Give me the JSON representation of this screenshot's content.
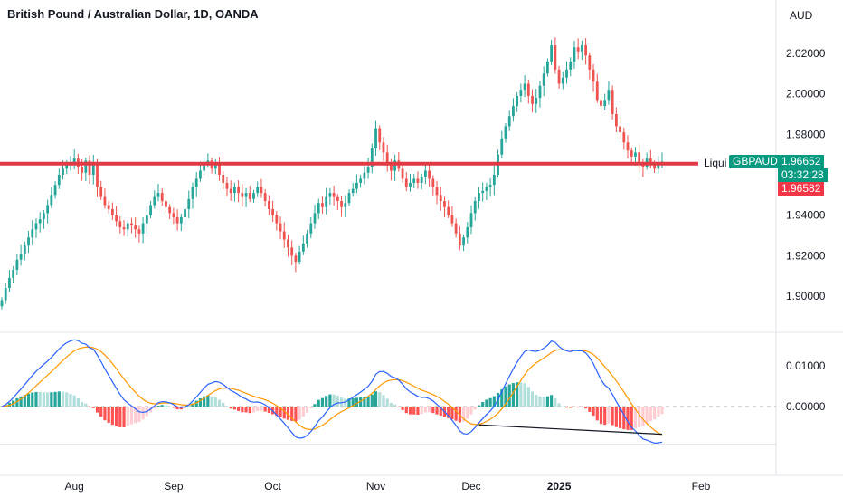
{
  "header": {
    "title": "British Pound / Australian Dollar, 1D, OANDA",
    "currency": "AUD"
  },
  "annotations": {
    "line_label": "Liqui",
    "symbol_tag": "GBPAUD",
    "last_price": "1.96652",
    "countdown": "03:32:28",
    "other_price": "1.96582"
  },
  "colors": {
    "up": "#26a69a",
    "down": "#ef5350",
    "level_line": "#e03a45",
    "macd_line": "#2962ff",
    "signal_line": "#ff9800",
    "hist_up_strong": "#26a69a",
    "hist_up_weak": "#b2dfdb",
    "hist_down_strong": "#ff5252",
    "hist_down_weak": "#ffcdd2"
  },
  "chart_data": [
    {
      "type": "candlestick",
      "price_axis": {
        "range": [
          1.895,
          2.032
        ],
        "ticks": [
          "2.02000",
          "2.00000",
          "1.98000",
          "1.96000",
          "1.94000",
          "1.92000",
          "1.90000"
        ]
      },
      "time_axis": {
        "labels": [
          "Aug",
          "Sep",
          "Oct",
          "Nov",
          "Dec",
          "2025",
          "Feb"
        ]
      },
      "horizontal_level": 1.9655,
      "closes": [
        1.898,
        1.904,
        1.909,
        1.913,
        1.918,
        1.921,
        1.925,
        1.929,
        1.933,
        1.936,
        1.938,
        1.941,
        1.945,
        1.95,
        1.955,
        1.96,
        1.963,
        1.965,
        1.966,
        1.968,
        1.964,
        1.961,
        1.967,
        1.96,
        1.966,
        1.954,
        1.949,
        1.945,
        1.943,
        1.94,
        1.937,
        1.934,
        1.933,
        1.936,
        1.935,
        1.933,
        1.931,
        1.936,
        1.94,
        1.945,
        1.949,
        1.951,
        1.947,
        1.944,
        1.941,
        1.939,
        1.936,
        1.939,
        1.943,
        1.948,
        1.954,
        1.958,
        1.962,
        1.966,
        1.967,
        1.963,
        1.965,
        1.96,
        1.956,
        1.953,
        1.951,
        1.954,
        1.951,
        1.949,
        1.951,
        1.948,
        1.951,
        1.954,
        1.951,
        1.947,
        1.943,
        1.94,
        1.936,
        1.932,
        1.928,
        1.924,
        1.92,
        1.917,
        1.922,
        1.926,
        1.931,
        1.936,
        1.941,
        1.946,
        1.944,
        1.949,
        1.951,
        1.949,
        1.947,
        1.944,
        1.946,
        1.951,
        1.953,
        1.956,
        1.958,
        1.961,
        1.964,
        1.973,
        1.983,
        1.976,
        1.971,
        1.966,
        1.962,
        1.967,
        1.963,
        1.958,
        1.954,
        1.956,
        1.958,
        1.956,
        1.959,
        1.962,
        1.958,
        1.954,
        1.95,
        1.947,
        1.944,
        1.94,
        1.936,
        1.931,
        1.925,
        1.929,
        1.934,
        1.941,
        1.947,
        1.951,
        1.952,
        1.954,
        1.955,
        1.96,
        1.97,
        1.978,
        1.984,
        1.989,
        1.994,
        1.999,
        2.002,
        2.005,
        1.999,
        1.995,
        1.998,
        2.004,
        2.01,
        2.016,
        2.024,
        2.012,
        2.005,
        2.008,
        2.012,
        2.016,
        2.023,
        2.021,
        2.024,
        2.019,
        2.012,
        2.006,
        1.997,
        1.994,
        1.997,
        2.002,
        1.99,
        1.984,
        1.981,
        1.976,
        1.972,
        1.969,
        1.971,
        1.966,
        1.964,
        1.968,
        1.965,
        1.963,
        1.966,
        1.9665
      ]
    },
    {
      "type": "macd",
      "y_axis": {
        "ticks": [
          "0.01000",
          "0.00000"
        ],
        "range": [
          -0.0105,
          0.0155
        ]
      },
      "divergence_line": {
        "from": [
          125,
          -0.0045
        ],
        "to": [
          173,
          -0.0068
        ]
      }
    }
  ]
}
